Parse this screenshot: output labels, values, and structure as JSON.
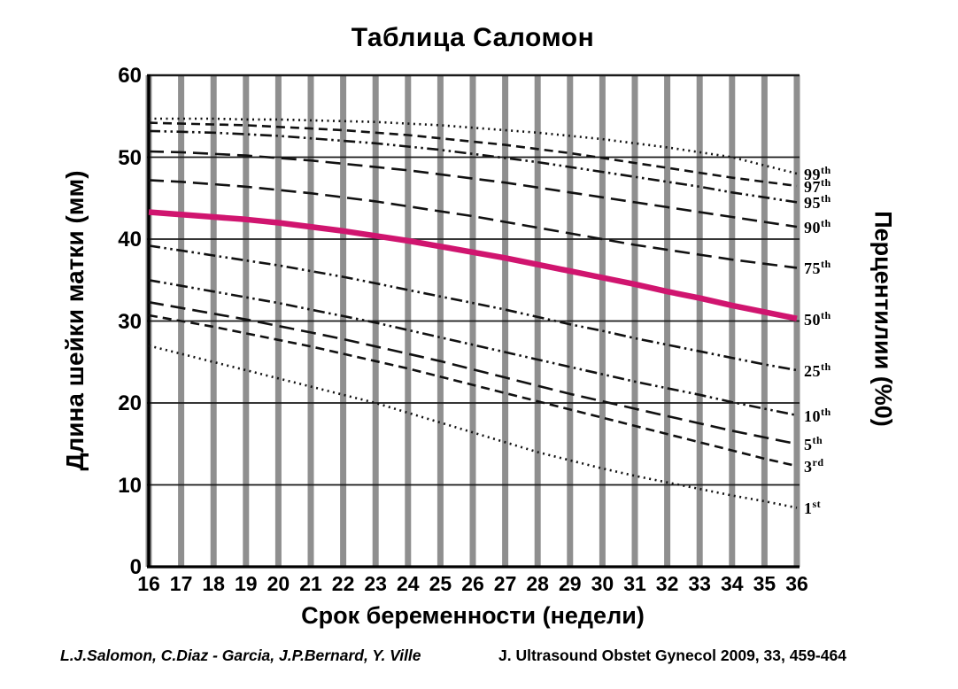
{
  "title": "Таблица Саломон",
  "y_axis_label": "Длина шейки матки (мм)",
  "right_axis_label": "Перцентилии (%0)",
  "x_axis_label": "Срок беременности (недели)",
  "footer": {
    "authors": "L.J.Salomon, C.Diaz  - Garcia, J.P.Bernard, Y. Ville",
    "journal": "J. Ultrasound Obstet Gynecol 2009, 33, 459-464"
  },
  "chart_data": {
    "type": "line",
    "title": "Таблица Саломон",
    "xlabel": "Срок беременности (недели)",
    "ylabel": "Длина шейки матки (мм)",
    "ylabel_right": "Перцентилии (%0)",
    "x": [
      16,
      17,
      18,
      19,
      20,
      21,
      22,
      23,
      24,
      25,
      26,
      27,
      28,
      29,
      30,
      31,
      32,
      33,
      34,
      35,
      36
    ],
    "xlim": [
      16,
      36
    ],
    "ylim": [
      0,
      60
    ],
    "yticks": [
      0,
      10,
      20,
      30,
      40,
      50,
      60
    ],
    "grid": {
      "vertical_bars": true,
      "bar_color": "#8f8f8f",
      "hline_color": "#1a1a1a"
    },
    "accent_color": "#d0156f",
    "line_color": "#111111",
    "series": [
      {
        "name": "99th",
        "label_base": "99",
        "label_sup": "th",
        "style": "dotted",
        "values": [
          54.7,
          54.7,
          54.7,
          54.6,
          54.6,
          54.5,
          54.4,
          54.3,
          54.1,
          53.9,
          53.6,
          53.3,
          53.0,
          52.6,
          52.2,
          51.7,
          51.2,
          50.6,
          50.0,
          49.0,
          48.0
        ]
      },
      {
        "name": "97th",
        "label_base": "97",
        "label_sup": "th",
        "style": "dash",
        "values": [
          54.2,
          54.1,
          54.0,
          53.9,
          53.7,
          53.5,
          53.3,
          53.0,
          52.7,
          52.3,
          51.9,
          51.5,
          51.0,
          50.5,
          49.9,
          49.3,
          48.7,
          48.1,
          47.5,
          47.0,
          46.5
        ]
      },
      {
        "name": "95th",
        "label_base": "95",
        "label_sup": "th",
        "style": "dashdotdot",
        "values": [
          53.2,
          53.1,
          53.0,
          52.8,
          52.6,
          52.3,
          52.0,
          51.7,
          51.3,
          50.9,
          50.4,
          49.9,
          49.4,
          48.8,
          48.2,
          47.6,
          47.0,
          46.4,
          45.7,
          45.1,
          44.5
        ]
      },
      {
        "name": "90th",
        "label_base": "90",
        "label_sup": "th",
        "style": "longdash",
        "values": [
          50.7,
          50.6,
          50.4,
          50.2,
          49.9,
          49.6,
          49.2,
          48.8,
          48.4,
          47.9,
          47.4,
          46.9,
          46.3,
          45.7,
          45.1,
          44.5,
          43.9,
          43.3,
          42.7,
          42.1,
          41.5
        ]
      },
      {
        "name": "75th",
        "label_base": "75",
        "label_sup": "th",
        "style": "longdash",
        "values": [
          47.2,
          47.0,
          46.7,
          46.4,
          46.0,
          45.6,
          45.1,
          44.6,
          44.0,
          43.4,
          42.8,
          42.1,
          41.4,
          40.7,
          40.0,
          39.3,
          38.7,
          38.1,
          37.5,
          37.0,
          36.5
        ]
      },
      {
        "name": "50th",
        "label_base": "50",
        "label_sup": "th",
        "style": "solid",
        "highlight": true,
        "values": [
          43.3,
          43.0,
          42.7,
          42.4,
          42.0,
          41.5,
          41.0,
          40.4,
          39.8,
          39.1,
          38.4,
          37.7,
          36.9,
          36.1,
          35.3,
          34.5,
          33.6,
          32.8,
          31.9,
          31.1,
          30.3
        ]
      },
      {
        "name": "25th",
        "label_base": "25",
        "label_sup": "th",
        "style": "dashdotdot",
        "values": [
          39.2,
          38.6,
          38.0,
          37.4,
          36.8,
          36.1,
          35.4,
          34.6,
          33.8,
          33.0,
          32.2,
          31.4,
          30.5,
          29.6,
          28.8,
          27.9,
          27.1,
          26.3,
          25.5,
          24.7,
          24.0
        ]
      },
      {
        "name": "10th",
        "label_base": "10",
        "label_sup": "th",
        "style": "dashdotdot",
        "values": [
          35.0,
          34.3,
          33.6,
          32.9,
          32.2,
          31.4,
          30.6,
          29.8,
          28.9,
          28.0,
          27.1,
          26.2,
          25.3,
          24.4,
          23.5,
          22.6,
          21.8,
          21.0,
          20.1,
          19.3,
          18.5
        ]
      },
      {
        "name": "5th",
        "label_base": "5",
        "label_sup": "th",
        "style": "longdash",
        "values": [
          32.3,
          31.6,
          30.9,
          30.2,
          29.4,
          28.6,
          27.8,
          26.9,
          26.0,
          25.1,
          24.1,
          23.1,
          22.1,
          21.1,
          20.2,
          19.3,
          18.4,
          17.5,
          16.6,
          15.8,
          15.0
        ]
      },
      {
        "name": "3rd",
        "label_base": "3",
        "label_sup": "rd",
        "style": "dash",
        "values": [
          30.7,
          30.0,
          29.3,
          28.5,
          27.7,
          26.9,
          26.0,
          25.1,
          24.2,
          23.2,
          22.2,
          21.2,
          20.2,
          19.2,
          18.2,
          17.2,
          16.2,
          15.2,
          14.2,
          13.2,
          12.3
        ]
      },
      {
        "name": "1st",
        "label_base": "1",
        "label_sup": "st",
        "style": "dotted",
        "values": [
          27.0,
          26.0,
          25.0,
          24.0,
          23.0,
          22.0,
          21.0,
          20.0,
          18.8,
          17.6,
          16.4,
          15.2,
          14.0,
          13.0,
          12.0,
          11.1,
          10.3,
          9.5,
          8.7,
          8.0,
          7.2
        ]
      }
    ]
  }
}
